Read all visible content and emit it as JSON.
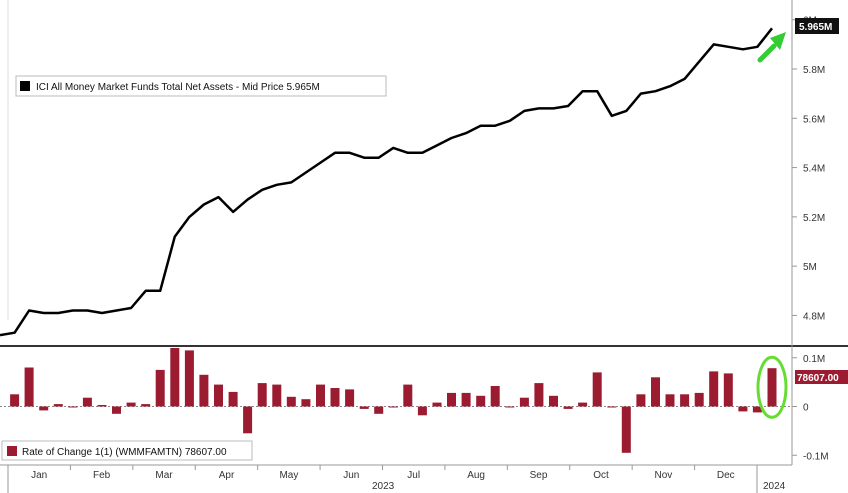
{
  "chart_data": [
    {
      "type": "line",
      "legend": {
        "label": "ICI All Money Market Funds Total Net Assets - Mid Price 5.965M",
        "placement": "top-left"
      },
      "last_value_label": "5.965M",
      "y_ticks": [
        "6M",
        "5.8M",
        "5.6M",
        "5.4M",
        "5.2M",
        "5M",
        "4.8M"
      ],
      "y_tick_values": [
        6.0,
        5.8,
        5.6,
        5.4,
        5.2,
        5.0,
        4.8
      ],
      "ylim": [
        4.68,
        6.08
      ],
      "series": [
        {
          "name": "ICI All Money Market Funds Total Net Assets - Mid Price",
          "color": "#000000",
          "x": [
            0,
            1,
            2,
            3,
            4,
            5,
            6,
            7,
            8,
            9,
            10,
            11,
            12,
            13,
            14,
            15,
            16,
            17,
            18,
            19,
            20,
            21,
            22,
            23,
            24,
            25,
            26,
            27,
            28,
            29,
            30,
            31,
            32,
            33,
            34,
            35,
            36,
            37,
            38,
            39,
            40,
            41,
            42,
            43,
            44,
            45,
            46,
            47,
            48,
            49,
            50,
            51,
            52,
            53
          ],
          "values": [
            4.72,
            4.73,
            4.82,
            4.81,
            4.81,
            4.82,
            4.82,
            4.81,
            4.82,
            4.83,
            4.9,
            4.9,
            5.12,
            5.2,
            5.25,
            5.28,
            5.22,
            5.27,
            5.31,
            5.33,
            5.34,
            5.38,
            5.42,
            5.46,
            5.46,
            5.44,
            5.44,
            5.48,
            5.46,
            5.46,
            5.49,
            5.52,
            5.54,
            5.57,
            5.57,
            5.59,
            5.63,
            5.64,
            5.64,
            5.65,
            5.71,
            5.71,
            5.61,
            5.63,
            5.7,
            5.71,
            5.73,
            5.76,
            5.83,
            5.9,
            5.89,
            5.88,
            5.89,
            5.965
          ]
        }
      ]
    },
    {
      "type": "bar",
      "legend": {
        "label": "Rate of Change 1(1)  (WMMFAMTN)  78607.00",
        "placement": "bottom-left"
      },
      "last_value_label": "78607.00",
      "y_ticks": [
        "0.1M",
        "0",
        "-0.1M"
      ],
      "y_tick_values": [
        100000,
        0,
        -100000
      ],
      "ylim": [
        -120000,
        120000
      ],
      "series": [
        {
          "name": "Rate of Change 1(1)  (WMMFAMTN)",
          "color": "#9b1b30",
          "x": [
            1,
            2,
            3,
            4,
            5,
            6,
            7,
            8,
            9,
            10,
            11,
            12,
            13,
            14,
            15,
            16,
            17,
            18,
            19,
            20,
            21,
            22,
            23,
            24,
            25,
            26,
            27,
            28,
            29,
            30,
            31,
            32,
            33,
            34,
            35,
            36,
            37,
            38,
            39,
            40,
            41,
            42,
            43,
            44,
            45,
            46,
            47,
            48,
            49,
            50,
            51,
            52,
            53
          ],
          "values": [
            25000,
            80000,
            -8000,
            5000,
            -2000,
            18000,
            3000,
            -15000,
            8000,
            5000,
            75000,
            120000,
            115000,
            65000,
            45000,
            30000,
            -55000,
            48000,
            45000,
            20000,
            15000,
            45000,
            38000,
            35000,
            -5000,
            -15000,
            -2000,
            45000,
            -18000,
            8000,
            28000,
            28000,
            22000,
            42000,
            -2000,
            18000,
            48000,
            22000,
            -5000,
            8000,
            70000,
            -2000,
            -95000,
            25000,
            60000,
            25000,
            25000,
            28000,
            72000,
            68000,
            -10000,
            -12000,
            78607
          ]
        }
      ]
    }
  ],
  "x_axis": {
    "months": [
      "Jan",
      "Feb",
      "Mar",
      "Apr",
      "May",
      "Jun",
      "Jul",
      "Aug",
      "Sep",
      "Oct",
      "Nov",
      "Dec"
    ],
    "years": [
      "2023",
      "2024"
    ]
  },
  "colors": {
    "line": "#000000",
    "bar": "#9b1b30",
    "highlight": "#66dd33",
    "arrow": "#33cc33"
  }
}
